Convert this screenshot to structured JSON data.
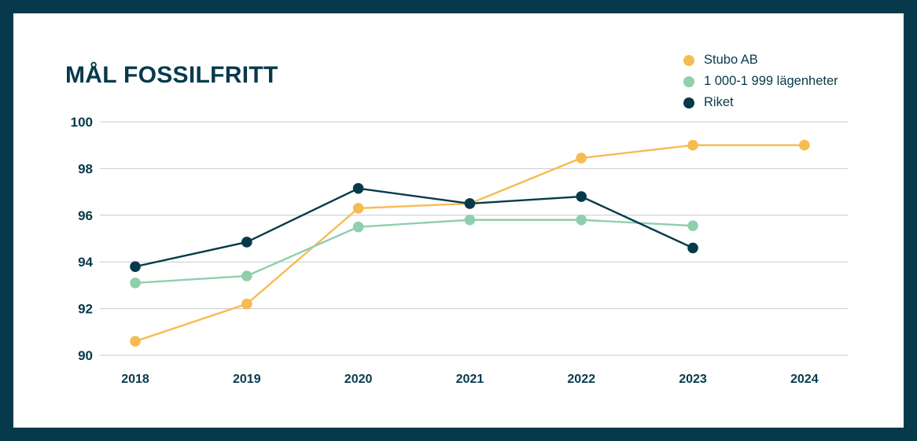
{
  "chart_data": {
    "type": "line",
    "title": "MÅL FOSSILFRITT",
    "xlabel": "",
    "ylabel": "",
    "categories": [
      "2018",
      "2019",
      "2020",
      "2021",
      "2022",
      "2023",
      "2024"
    ],
    "ylim": [
      90,
      100
    ],
    "yticks": [
      90,
      92,
      94,
      96,
      98,
      100
    ],
    "grid": true,
    "legend_position": "top-right",
    "series": [
      {
        "name": "Stubo AB",
        "color": "#f7bb52",
        "values": [
          90.6,
          92.2,
          96.3,
          96.5,
          98.45,
          99.0,
          99.0
        ]
      },
      {
        "name": "1 000-1 999 lägenheter",
        "color": "#8fcfab",
        "values": [
          93.1,
          93.4,
          95.5,
          95.8,
          95.8,
          95.55,
          null
        ]
      },
      {
        "name": "Riket",
        "color": "#063a4b",
        "values": [
          93.8,
          94.85,
          97.15,
          96.5,
          96.8,
          94.6,
          null
        ]
      }
    ]
  }
}
